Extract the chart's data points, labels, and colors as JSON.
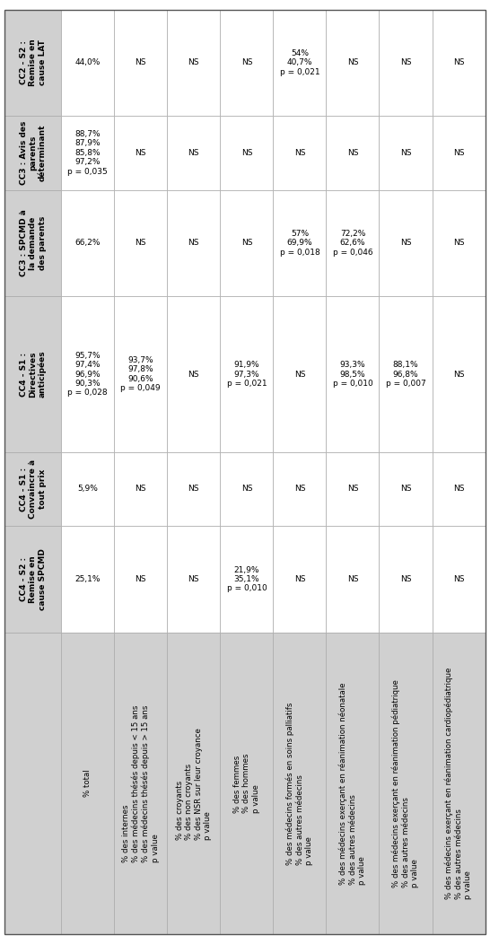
{
  "col_headers_rotated": [
    "% total",
    "% des internes\n% des médecins thésés depuis < 15 ans\n% des médecins thésés depuis > 15 ans\np value",
    "% des croyants\n% des non croyants\n% des NSR sur leur croyance\np value",
    "% des femmes\n% des hommes\np value",
    "% des médecins formés en soins palliatifs\n% des autres médecins\np value",
    "% des médecins exerçant en réanimation néonatale\n% des autres médecins\np value",
    "% des médecins exerçant en réanimation pédiatrique\n% des autres médecins\np value",
    "% des médecins exerçant en réanimation cardiopédiatrique\n% des autres médecins\np value"
  ],
  "row_headers_rotated": [
    "CC2 - S2 :\nRemise en\ncause LAT",
    "CC3 : Avis des\nparents\ndéterminant",
    "CC3 : SPCMD à\nla demande\ndes parents",
    "CC4 - S1 :\nDirectives\nanticipées",
    "CC4 - S1 :\nConvaincre à\ntout prix",
    "CC4 - S2 :\nRemise en\ncause SPCMD"
  ],
  "cell_data": [
    [
      "44,0%",
      "NS",
      "NS",
      "NS",
      "54%\n40,7%\np = 0,021",
      "NS",
      "NS",
      "NS"
    ],
    [
      "88,7%\n87,9%\n85,8%\n97,2%\np = 0,035",
      "NS",
      "NS",
      "NS",
      "NS",
      "NS",
      "NS",
      "NS"
    ],
    [
      "66,2%",
      "NS",
      "NS",
      "NS",
      "57%\n69,9%\np = 0,018",
      "72,2%\n62,6%\np = 0,046",
      "NS",
      "NS"
    ],
    [
      "95,7%\n97,4%\n96,9%\n90,3%\np = 0,028",
      "93,7%\n97,8%\n90,6%\np = 0,049",
      "NS",
      "91,9%\n97,3%\np = 0,021",
      "NS",
      "93,3%\n98,5%\np = 0,010",
      "88,1%\n96,8%\np = 0,007"
    ],
    [
      "5,9%",
      "NS",
      "NS",
      "NS",
      "NS",
      "NS",
      "NS",
      "NS"
    ],
    [
      "25,1%",
      "NS",
      "NS",
      "21,9%\n35,1%\np = 0,010",
      "NS",
      "NS",
      "NS",
      "NS"
    ]
  ],
  "cell_data_fixed": [
    [
      "44,0%",
      "NS",
      "NS",
      "NS",
      "54%\n40,7%\np = 0,021",
      "NS",
      "NS",
      "NS"
    ],
    [
      "88,7%\n87,9%\n85,8%\n97,2%\np = 0,035",
      "NS",
      "NS",
      "NS",
      "NS",
      "NS",
      "NS",
      "NS"
    ],
    [
      "66,2%",
      "NS",
      "NS",
      "NS",
      "57%\n69,9%\np = 0,018",
      "72,2%\n62,6%\np = 0,046",
      "NS",
      "NS"
    ],
    [
      "95,7%\n97,4%\n96,9%\n90,3%\np = 0,028",
      "93,7%\n97,8%\n90,6%\np = 0,049",
      "NS",
      "91,9%\n97,3%\np = 0,021",
      "NS",
      "93,3%\n98,5%\np = 0,010",
      "88,1%\n96,8%\np = 0,007"
    ],
    [
      "5,9%",
      "NS",
      "NS",
      "NS",
      "NS",
      "NS",
      "NS",
      "NS"
    ],
    [
      "25,1%",
      "NS",
      "NS",
      "21,9%\n35,1%\np = 0,010",
      "NS",
      "NS",
      "NS",
      "NS"
    ]
  ],
  "header_bg": "#d0d0d0",
  "row_label_bg": "#d0d0d0",
  "cell_bg": "#ffffff",
  "border_color": "#aaaaaa",
  "text_color": "#000000",
  "font_size": 6.5,
  "header_font_size": 6.5
}
